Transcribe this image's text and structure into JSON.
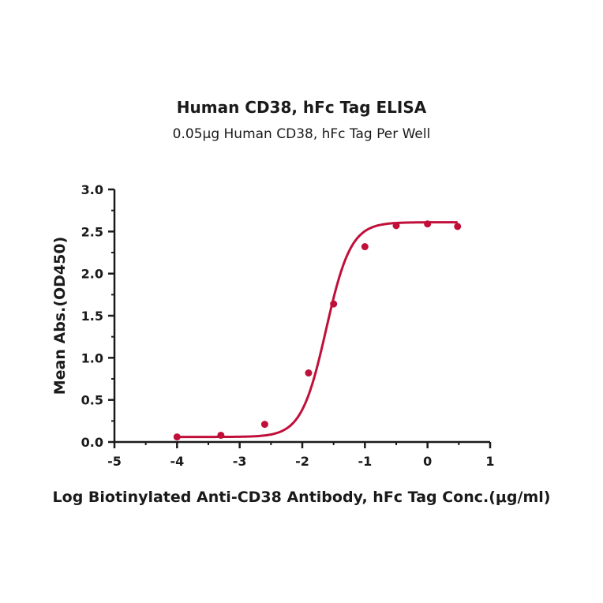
{
  "chart_data": {
    "type": "scatter",
    "title": "Human CD38, hFc Tag ELISA",
    "subtitle": "0.05μg Human CD38, hFc Tag Per Well",
    "xlabel": "Log Biotinylated Anti-CD38 Antibody, hFc Tag Conc.(μg/ml)",
    "ylabel": "Mean Abs.(OD450)",
    "xlim": [
      -5,
      1
    ],
    "ylim": [
      0,
      3.0
    ],
    "x_ticks": [
      "-5",
      "-4",
      "-3",
      "-2",
      "-1",
      "0",
      "1"
    ],
    "y_ticks": [
      "0.0",
      "0.5",
      "1.0",
      "1.5",
      "2.0",
      "2.5",
      "3.0"
    ],
    "color": "#c0103a",
    "fit": "sigmoid",
    "points": [
      {
        "x": -4.0,
        "y": 0.06
      },
      {
        "x": -3.3,
        "y": 0.08
      },
      {
        "x": -2.6,
        "y": 0.21
      },
      {
        "x": -1.9,
        "y": 0.82
      },
      {
        "x": -1.5,
        "y": 1.64
      },
      {
        "x": -1.0,
        "y": 2.32
      },
      {
        "x": -0.5,
        "y": 2.57
      },
      {
        "x": 0.0,
        "y": 2.59
      },
      {
        "x": 0.48,
        "y": 2.56
      }
    ],
    "grid": false,
    "legend": "none"
  }
}
